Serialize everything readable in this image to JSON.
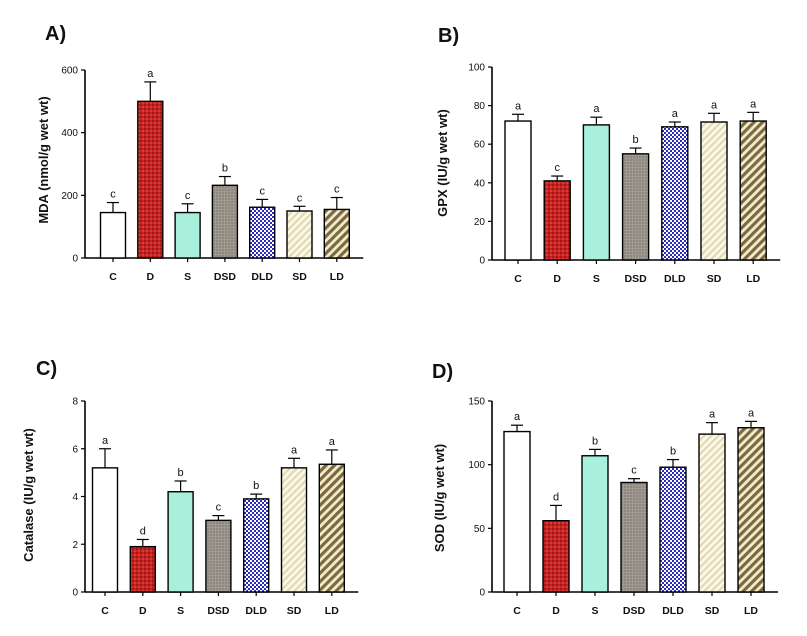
{
  "chart_data": [
    {
      "type": "bar",
      "panel_label": "A)",
      "ylabel": "MDA (nmol/g wet wt)",
      "categories": [
        "C",
        "D",
        "S",
        "DSD",
        "DLD",
        "SD",
        "LD"
      ],
      "values": [
        145,
        500,
        145,
        232,
        162,
        150,
        155
      ],
      "errors": [
        32,
        62,
        28,
        28,
        25,
        15,
        38
      ],
      "significance": [
        "c",
        "a",
        "c",
        "b",
        "c",
        "c",
        "c"
      ],
      "ylim": [
        0,
        600
      ],
      "yticks": [
        0,
        200,
        400,
        600
      ]
    },
    {
      "type": "bar",
      "panel_label": "B)",
      "ylabel": "GPX (IU/g wet wt)",
      "categories": [
        "C",
        "D",
        "S",
        "DSD",
        "DLD",
        "SD",
        "LD"
      ],
      "values": [
        72,
        41,
        70,
        55,
        69,
        71.5,
        72
      ],
      "errors": [
        3.5,
        2.5,
        4,
        3,
        2.5,
        4.5,
        4.5
      ],
      "significance": [
        "a",
        "c",
        "a",
        "b",
        "a",
        "a",
        "a"
      ],
      "ylim": [
        0,
        100
      ],
      "yticks": [
        0,
        20,
        40,
        60,
        80,
        100
      ]
    },
    {
      "type": "bar",
      "panel_label": "C)",
      "ylabel": "Catalase (IU/g wet wt)",
      "categories": [
        "C",
        "D",
        "S",
        "DSD",
        "DLD",
        "SD",
        "LD"
      ],
      "values": [
        5.2,
        1.9,
        4.2,
        3.0,
        3.9,
        5.2,
        5.35
      ],
      "errors": [
        0.8,
        0.3,
        0.45,
        0.2,
        0.2,
        0.4,
        0.6
      ],
      "significance": [
        "a",
        "d",
        "b",
        "c",
        "b",
        "a",
        "a"
      ],
      "ylim": [
        0,
        8
      ],
      "yticks": [
        0,
        2,
        4,
        6,
        8
      ]
    },
    {
      "type": "bar",
      "panel_label": "D)",
      "ylabel": "SOD (IU/g wet wt)",
      "categories": [
        "C",
        "D",
        "S",
        "DSD",
        "DLD",
        "SD",
        "LD"
      ],
      "values": [
        126,
        56,
        107,
        86,
        98,
        124,
        129
      ],
      "errors": [
        5,
        12,
        5,
        3,
        6,
        9,
        5
      ],
      "significance": [
        "a",
        "d",
        "b",
        "c",
        "b",
        "a",
        "a"
      ],
      "ylim": [
        0,
        150
      ],
      "yticks": [
        0,
        50,
        100,
        150
      ]
    }
  ],
  "bar_styles": [
    {
      "fill": "#ffffff",
      "pattern": "none"
    },
    {
      "fill": "#c8201e",
      "pattern": "dots"
    },
    {
      "fill": "#a8f0dc",
      "pattern": "none"
    },
    {
      "fill": "#a09a90",
      "pattern": "fine-dots"
    },
    {
      "fill": "#2a2ab8",
      "pattern": "checker"
    },
    {
      "fill": "#efe8cc",
      "pattern": "light-stripes"
    },
    {
      "fill": "#8c7a46",
      "pattern": "stripes"
    }
  ]
}
